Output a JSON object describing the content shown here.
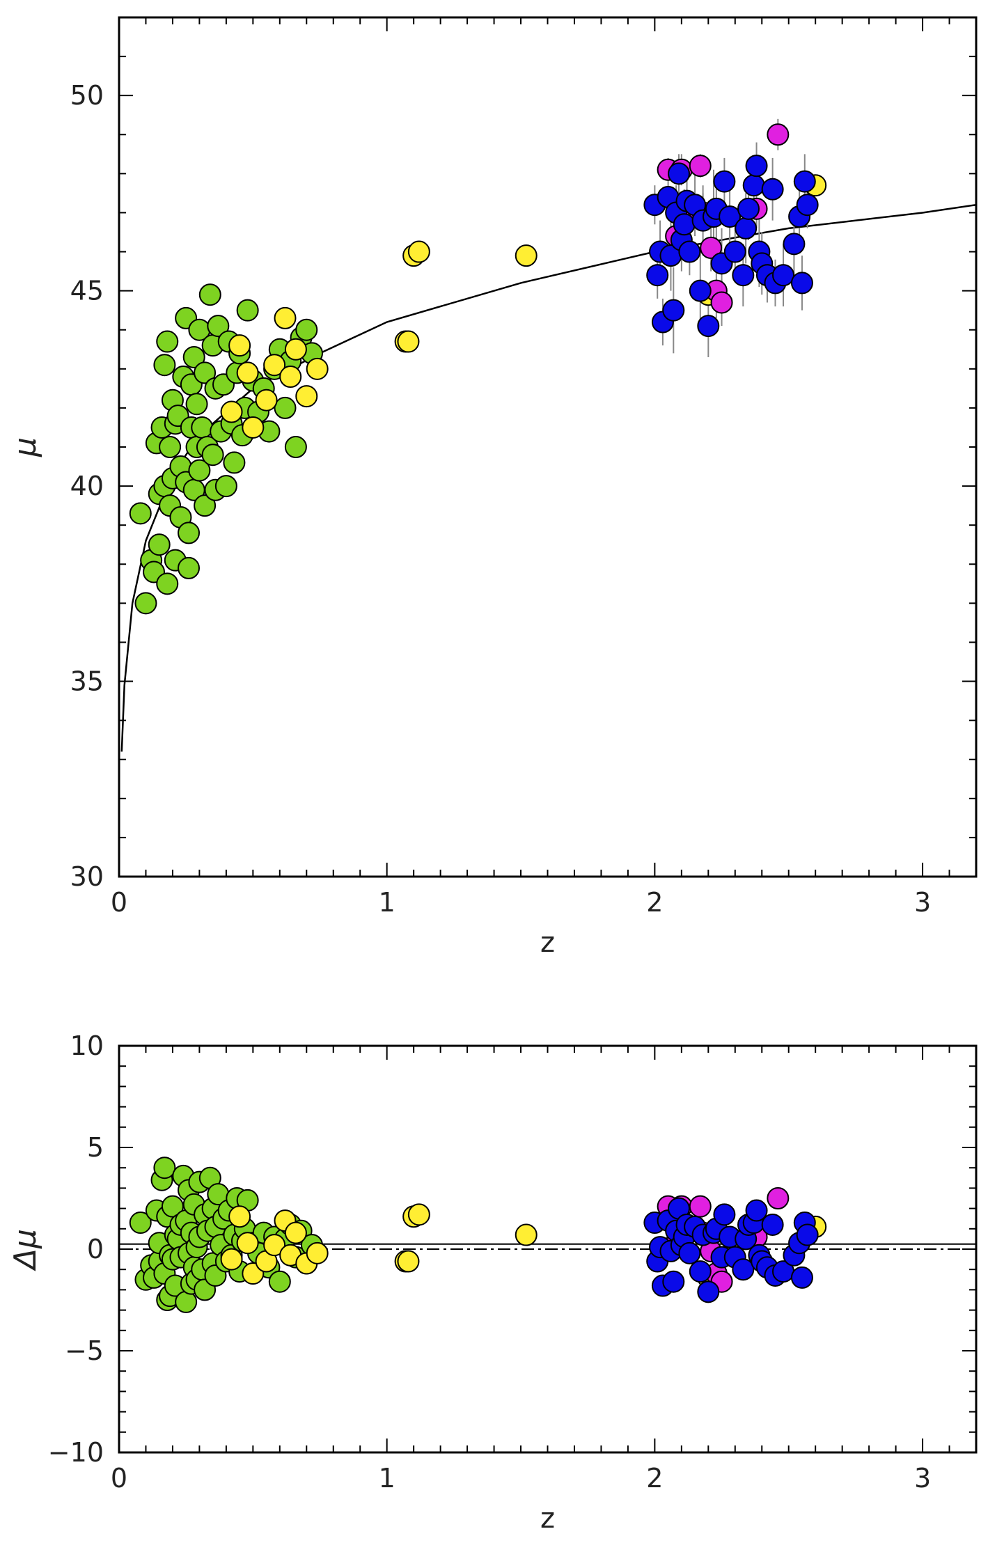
{
  "chart_data": [
    {
      "type": "scatter",
      "title": "",
      "xlabel": "z",
      "ylabel": "μ",
      "xlim": [
        0,
        3.2
      ],
      "ylim": [
        30,
        52
      ],
      "xticks": [
        0,
        1,
        2,
        3
      ],
      "xtick_labels": [
        "0",
        "1",
        "2",
        "3"
      ],
      "yticks": [
        30,
        35,
        40,
        45,
        50
      ],
      "ytick_labels": [
        "30",
        "35",
        "40",
        "45",
        "50"
      ],
      "model_curve": {
        "name": "model",
        "x": [
          0.01,
          0.02,
          0.05,
          0.1,
          0.2,
          0.3,
          0.5,
          0.75,
          1.0,
          1.5,
          2.0,
          2.5,
          3.0,
          3.2
        ],
        "y": [
          33.2,
          34.9,
          37.0,
          38.6,
          40.3,
          41.3,
          42.5,
          43.4,
          44.2,
          45.2,
          46.0,
          46.6,
          47.0,
          47.2
        ]
      },
      "series": [
        {
          "name": "green",
          "color": "#7ed321",
          "x": [
            0.08,
            0.1,
            0.12,
            0.13,
            0.14,
            0.15,
            0.15,
            0.16,
            0.17,
            0.17,
            0.18,
            0.18,
            0.19,
            0.19,
            0.2,
            0.2,
            0.21,
            0.21,
            0.22,
            0.23,
            0.23,
            0.24,
            0.25,
            0.25,
            0.26,
            0.26,
            0.27,
            0.27,
            0.28,
            0.28,
            0.29,
            0.29,
            0.3,
            0.3,
            0.31,
            0.32,
            0.32,
            0.33,
            0.34,
            0.35,
            0.35,
            0.36,
            0.36,
            0.37,
            0.38,
            0.39,
            0.4,
            0.41,
            0.42,
            0.43,
            0.44,
            0.45,
            0.46,
            0.47,
            0.48,
            0.5,
            0.52,
            0.54,
            0.56,
            0.58,
            0.6,
            0.62,
            0.64,
            0.66,
            0.68,
            0.7,
            0.72
          ],
          "y": [
            39.3,
            37.0,
            38.1,
            37.8,
            41.1,
            39.8,
            38.5,
            41.5,
            40.0,
            43.1,
            37.5,
            43.7,
            41.0,
            39.5,
            42.2,
            40.2,
            41.6,
            38.1,
            41.8,
            40.5,
            39.2,
            42.8,
            40.1,
            44.3,
            37.9,
            38.8,
            41.5,
            42.6,
            43.3,
            39.9,
            41.0,
            42.1,
            44.0,
            40.4,
            41.5,
            39.5,
            42.9,
            41.0,
            44.9,
            40.8,
            43.6,
            42.5,
            39.9,
            44.1,
            41.4,
            42.6,
            40.0,
            43.7,
            41.6,
            40.6,
            42.9,
            43.4,
            41.3,
            42.0,
            44.5,
            42.7,
            41.9,
            42.5,
            41.4,
            43.0,
            43.5,
            42.0,
            43.2,
            41.0,
            43.8,
            44.0,
            43.4
          ]
        },
        {
          "name": "yellow",
          "color": "#ffee33",
          "x": [
            0.42,
            0.45,
            0.48,
            0.5,
            0.55,
            0.58,
            0.62,
            0.64,
            0.66,
            0.7,
            0.74,
            1.07,
            1.08,
            1.1,
            1.12,
            1.52,
            2.2,
            2.6
          ],
          "y": [
            41.9,
            43.6,
            42.9,
            41.5,
            42.2,
            43.1,
            44.3,
            42.8,
            43.5,
            42.3,
            43.0,
            43.7,
            43.7,
            45.9,
            46.0,
            45.9,
            44.9,
            47.7
          ]
        },
        {
          "name": "magenta",
          "color": "#e020e0",
          "x": [
            2.05,
            2.08,
            2.1,
            2.12,
            2.17,
            2.18,
            2.21,
            2.23,
            2.25,
            2.38,
            2.46
          ],
          "y": [
            48.1,
            46.4,
            48.1,
            47.0,
            48.2,
            47.0,
            46.1,
            45.0,
            44.7,
            47.1,
            49.0
          ],
          "errors": [
            0.3,
            0.5,
            0.4,
            0.4,
            0.3,
            0.5,
            0.6,
            0.7,
            0.6,
            0.5,
            0.4
          ]
        },
        {
          "name": "blue",
          "color": "#0a0ae8",
          "x": [
            2.0,
            2.01,
            2.02,
            2.03,
            2.05,
            2.06,
            2.07,
            2.08,
            2.09,
            2.1,
            2.11,
            2.12,
            2.13,
            2.15,
            2.17,
            2.18,
            2.2,
            2.22,
            2.23,
            2.25,
            2.26,
            2.28,
            2.3,
            2.33,
            2.34,
            2.35,
            2.37,
            2.38,
            2.39,
            2.4,
            2.42,
            2.44,
            2.45,
            2.48,
            2.52,
            2.54,
            2.55,
            2.56,
            2.57
          ],
          "y": [
            47.2,
            45.4,
            46.0,
            44.2,
            47.4,
            45.9,
            44.5,
            47.0,
            48.0,
            46.3,
            46.7,
            47.3,
            46.0,
            47.2,
            45.0,
            46.8,
            44.1,
            46.9,
            47.1,
            45.7,
            47.8,
            46.9,
            46.0,
            45.4,
            46.6,
            47.1,
            47.7,
            48.2,
            46.0,
            45.7,
            45.4,
            47.6,
            45.2,
            45.4,
            46.2,
            46.9,
            45.2,
            47.8,
            47.2
          ],
          "errors": [
            0.5,
            0.6,
            0.8,
            0.6,
            0.4,
            0.9,
            1.1,
            0.7,
            0.5,
            0.8,
            0.9,
            0.7,
            0.6,
            0.8,
            1.0,
            0.9,
            0.8,
            1.2,
            0.9,
            0.9,
            0.6,
            0.9,
            0.7,
            0.8,
            0.9,
            0.8,
            0.7,
            0.6,
            0.9,
            0.8,
            0.7,
            0.8,
            0.6,
            0.8,
            0.9,
            0.9,
            0.7,
            0.7,
            0.6
          ]
        }
      ]
    },
    {
      "type": "scatter",
      "title": "",
      "xlabel": "z",
      "ylabel": "Δμ",
      "xlim": [
        0,
        3.2
      ],
      "ylim": [
        -10,
        10
      ],
      "xticks": [
        0,
        1,
        2,
        3
      ],
      "xtick_labels": [
        "0",
        "1",
        "2",
        "3"
      ],
      "yticks": [
        -10,
        -5,
        0,
        5,
        10
      ],
      "ytick_labels": [
        "−10",
        "−5",
        "0",
        "5",
        "10"
      ],
      "reference_lines": [
        {
          "name": "zero-line",
          "y": 0.0,
          "style": "dash-dot"
        },
        {
          "name": "mean-offset-line",
          "y": 0.25,
          "style": "solid"
        }
      ],
      "series": [
        {
          "name": "green",
          "color": "#7ed321",
          "x": [
            0.08,
            0.1,
            0.12,
            0.13,
            0.14,
            0.15,
            0.15,
            0.16,
            0.17,
            0.17,
            0.18,
            0.18,
            0.19,
            0.19,
            0.2,
            0.2,
            0.21,
            0.21,
            0.22,
            0.23,
            0.23,
            0.24,
            0.25,
            0.25,
            0.26,
            0.26,
            0.27,
            0.27,
            0.28,
            0.28,
            0.29,
            0.29,
            0.3,
            0.3,
            0.31,
            0.32,
            0.32,
            0.33,
            0.34,
            0.35,
            0.35,
            0.36,
            0.36,
            0.37,
            0.38,
            0.39,
            0.4,
            0.41,
            0.42,
            0.43,
            0.44,
            0.45,
            0.46,
            0.47,
            0.48,
            0.5,
            0.52,
            0.54,
            0.56,
            0.58,
            0.6,
            0.62,
            0.64,
            0.66,
            0.68,
            0.7,
            0.72
          ],
          "y": [
            1.3,
            -1.5,
            -0.8,
            -1.4,
            1.9,
            -0.6,
            0.3,
            3.4,
            -1.2,
            4.0,
            -2.5,
            1.6,
            -0.3,
            -2.3,
            2.1,
            -0.5,
            0.7,
            -1.8,
            0.5,
            -0.4,
            1.2,
            3.6,
            -2.6,
            1.4,
            -0.2,
            2.9,
            0.8,
            -1.7,
            2.2,
            -0.9,
            0.1,
            -1.5,
            3.3,
            0.6,
            -1.0,
            1.7,
            -2.0,
            0.9,
            3.5,
            -0.7,
            2.0,
            1.1,
            -1.3,
            2.7,
            0.2,
            1.5,
            -0.6,
            1.9,
            -0.3,
            0.7,
            2.5,
            -1.1,
            0.4,
            1.0,
            2.4,
            0.3,
            -0.2,
            0.8,
            -0.9,
            0.6,
            -1.6,
            0.5,
            1.2,
            -0.4,
            0.9,
            -0.7,
            0.2
          ]
        },
        {
          "name": "yellow",
          "color": "#ffee33",
          "x": [
            0.42,
            0.45,
            0.48,
            0.5,
            0.55,
            0.58,
            0.62,
            0.64,
            0.66,
            0.7,
            0.74,
            1.07,
            1.08,
            1.1,
            1.12,
            1.52,
            2.2,
            2.6
          ],
          "y": [
            -0.5,
            1.6,
            0.3,
            -1.2,
            -0.6,
            0.2,
            1.4,
            -0.3,
            0.8,
            -0.7,
            -0.2,
            -0.6,
            -0.6,
            1.6,
            1.7,
            0.7,
            -1.4,
            1.1
          ]
        },
        {
          "name": "magenta",
          "color": "#e020e0",
          "x": [
            2.05,
            2.08,
            2.1,
            2.12,
            2.17,
            2.18,
            2.21,
            2.23,
            2.25,
            2.38,
            2.46
          ],
          "y": [
            2.1,
            0.3,
            2.1,
            1.0,
            2.1,
            0.8,
            -0.1,
            -1.2,
            -1.6,
            0.6,
            2.5
          ]
        },
        {
          "name": "blue",
          "color": "#0a0ae8",
          "x": [
            2.0,
            2.01,
            2.02,
            2.03,
            2.05,
            2.06,
            2.07,
            2.08,
            2.09,
            2.1,
            2.11,
            2.12,
            2.13,
            2.15,
            2.17,
            2.18,
            2.2,
            2.22,
            2.23,
            2.25,
            2.26,
            2.28,
            2.3,
            2.33,
            2.34,
            2.35,
            2.37,
            2.38,
            2.39,
            2.4,
            2.42,
            2.44,
            2.45,
            2.48,
            2.52,
            2.54,
            2.55,
            2.56,
            2.57
          ],
          "y": [
            1.3,
            -0.6,
            0.1,
            -1.8,
            1.4,
            -0.1,
            -1.6,
            0.9,
            2.0,
            0.2,
            0.6,
            1.2,
            -0.2,
            1.1,
            -1.1,
            0.7,
            -2.1,
            0.8,
            1.0,
            -0.4,
            1.7,
            0.6,
            -0.4,
            -1.0,
            0.5,
            1.2,
            1.3,
            1.9,
            -0.3,
            -0.6,
            -0.9,
            1.2,
            -1.3,
            -1.1,
            -0.3,
            0.3,
            -1.4,
            1.3,
            0.7
          ]
        }
      ]
    }
  ]
}
